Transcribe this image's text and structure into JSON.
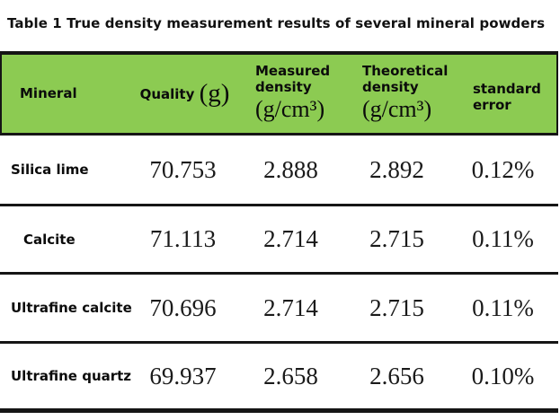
{
  "title": "Table 1 True density measurement results of several mineral powders",
  "colors": {
    "header_bg": "#8CCB52",
    "rule_color": "#151515"
  },
  "table": {
    "header": {
      "mineral": "Mineral",
      "quality_label": "Quality",
      "quality_unit": "(g)",
      "measured_label": "Measured density",
      "measured_unit": "(g/cm³)",
      "theoretical_label": "Theoretical density",
      "theoretical_unit": "(g/cm³)",
      "error_label": "standard error"
    },
    "rows": [
      {
        "mineral": "Silica lime",
        "quality": "70.753",
        "measured": "2.888",
        "theoretical": "2.892",
        "error": "0.12%"
      },
      {
        "mineral": "Calcite",
        "quality": "71.113",
        "measured": "2.714",
        "theoretical": "2.715",
        "error": "0.11%"
      },
      {
        "mineral": "Ultrafine calcite",
        "quality": "70.696",
        "measured": "2.714",
        "theoretical": "2.715",
        "error": "0.11%"
      },
      {
        "mineral": "Ultrafine quartz",
        "quality": "69.937",
        "measured": "2.658",
        "theoretical": "2.656",
        "error": "0.10%"
      }
    ]
  }
}
